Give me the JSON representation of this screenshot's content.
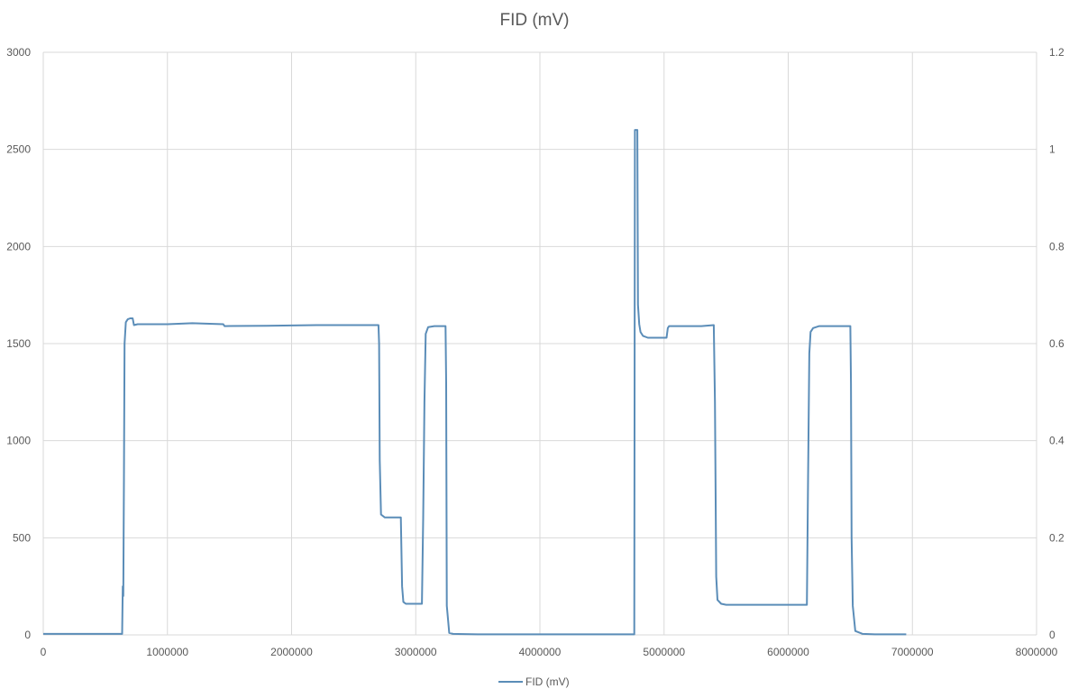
{
  "chart_data": {
    "type": "line",
    "title": "FID (mV)",
    "xlim": [
      0,
      8000000
    ],
    "ylim": [
      0,
      3000
    ],
    "y2lim": [
      0,
      1.2
    ],
    "x_ticks": [
      "0",
      "1000000",
      "2000000",
      "3000000",
      "4000000",
      "5000000",
      "6000000",
      "7000000",
      "8000000"
    ],
    "y_ticks": [
      "0",
      "500",
      "1000",
      "1500",
      "2000",
      "2500",
      "3000"
    ],
    "y2_ticks": [
      "0",
      "0.2",
      "0.4",
      "0.6",
      "0.8",
      "1",
      "1.2"
    ],
    "grid": true,
    "legend": "bottom",
    "colors": {
      "series": "#5b8db8",
      "grid": "#d9d9d9",
      "text": "#595959"
    },
    "series": [
      {
        "name": "FID (mV)",
        "x": [
          0,
          630000,
          635000,
          640000,
          645000,
          650000,
          655000,
          665000,
          680000,
          700000,
          720000,
          730000,
          760000,
          800000,
          1000000,
          1200000,
          1450000,
          1460000,
          1800000,
          2200000,
          2700000,
          2705000,
          2710000,
          2720000,
          2750000,
          2850000,
          2880000,
          2890000,
          2900000,
          2920000,
          2950000,
          3050000,
          3060000,
          3070000,
          3080000,
          3100000,
          3150000,
          3240000,
          3245000,
          3250000,
          3270000,
          3300000,
          3500000,
          4750000,
          4760000,
          4765000,
          4780000,
          4785000,
          4790000,
          4800000,
          4810000,
          4830000,
          4870000,
          4950000,
          5020000,
          5030000,
          5040000,
          5100000,
          5300000,
          5400000,
          5410000,
          5420000,
          5430000,
          5460000,
          5500000,
          5700000,
          5900000,
          6150000,
          6160000,
          6170000,
          6180000,
          6200000,
          6250000,
          6300000,
          6500000,
          6505000,
          6510000,
          6520000,
          6540000,
          6600000,
          6700000,
          6950000
        ],
        "values": [
          5,
          5,
          5,
          250,
          200,
          800,
          1500,
          1610,
          1625,
          1630,
          1630,
          1595,
          1600,
          1600,
          1600,
          1605,
          1600,
          1590,
          1592,
          1595,
          1595,
          1500,
          900,
          620,
          605,
          605,
          605,
          250,
          170,
          160,
          160,
          160,
          600,
          1200,
          1550,
          1585,
          1590,
          1590,
          1300,
          150,
          10,
          5,
          3,
          3,
          3,
          2600,
          2600,
          2600,
          1700,
          1600,
          1560,
          1540,
          1530,
          1530,
          1530,
          1580,
          1590,
          1590,
          1590,
          1595,
          1200,
          300,
          180,
          160,
          155,
          155,
          155,
          155,
          800,
          1450,
          1560,
          1580,
          1590,
          1590,
          1590,
          1300,
          500,
          150,
          20,
          5,
          3,
          3
        ]
      }
    ]
  }
}
